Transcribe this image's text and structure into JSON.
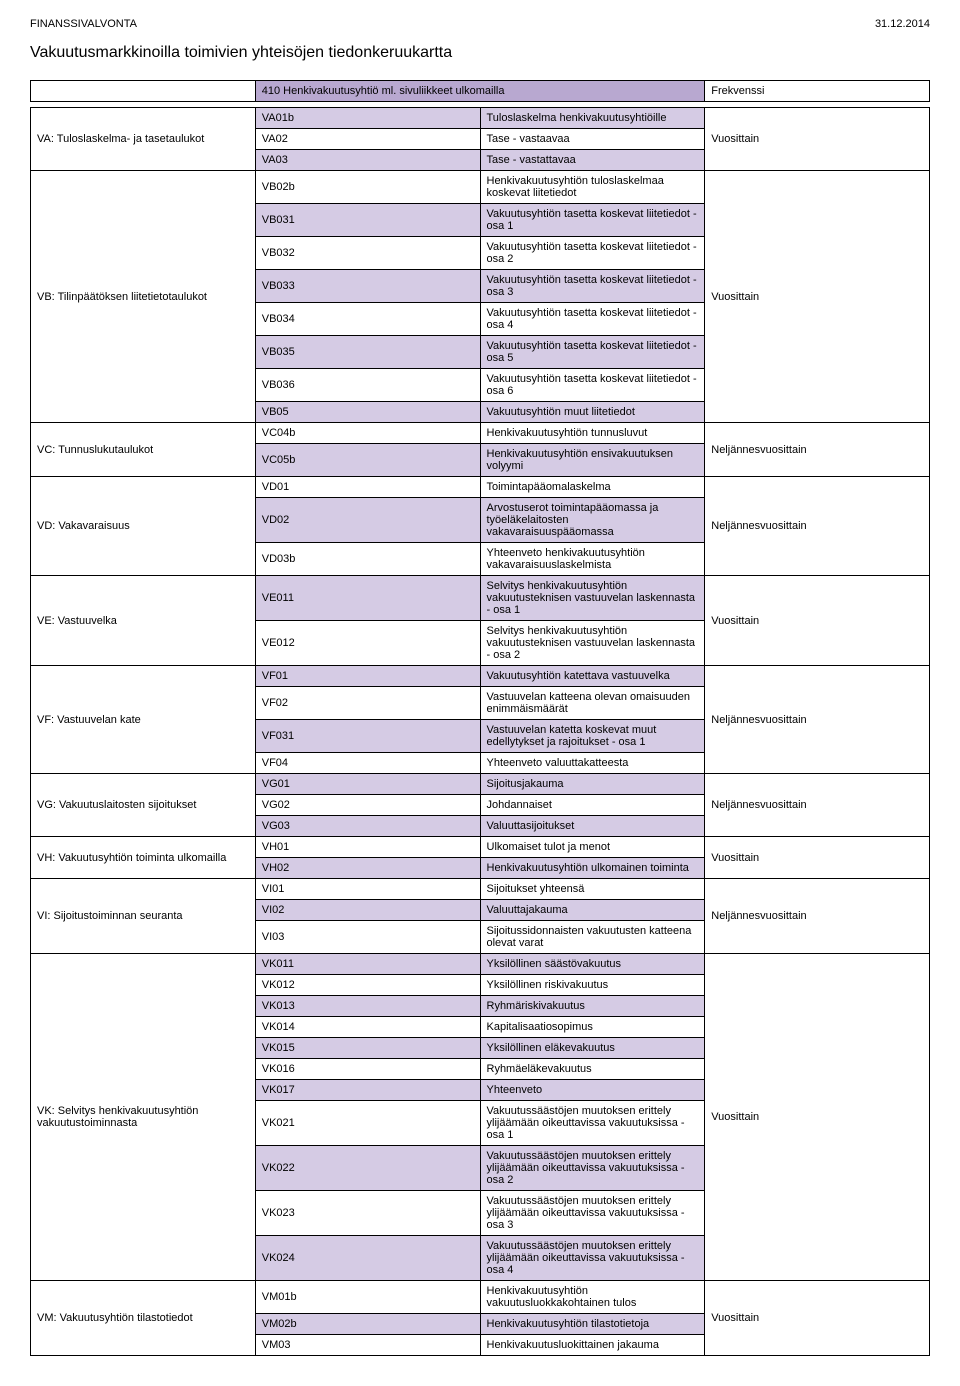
{
  "header": {
    "org": "FINANSSIVALVONTA",
    "date": "31.12.2014"
  },
  "page_title": "Vakuutusmarkkinoilla toimivien yhteisöjen tiedonkeruukartta",
  "table_header": {
    "title": "410 Henkivakuutusyhtiö ml. sivuliikkeet ulkomailla",
    "freq_label": "Frekvenssi"
  },
  "colors": {
    "header_bg": "#b8a8d0",
    "row_bg": "#d5cbe4",
    "border": "#000000",
    "text": "#000000"
  },
  "groups": [
    {
      "id": "VA",
      "label": "VA: Tuloslaskelma- ja tasetaulukot",
      "freq": "Vuosittain",
      "rows": [
        {
          "code": "VA01b",
          "desc": "Tuloslaskelma henkivakuutusyhtiöille"
        },
        {
          "code": "VA02",
          "desc": "Tase - vastaavaa"
        },
        {
          "code": "VA03",
          "desc": "Tase - vastattavaa"
        }
      ]
    },
    {
      "id": "VB",
      "label": "VB: Tilinpäätöksen liitetietotaulukot",
      "freq": "Vuosittain",
      "rows": [
        {
          "code": "VB02b",
          "desc": "Henkivakuutusyhtiön tuloslaskelmaa koskevat liitetiedot"
        },
        {
          "code": "VB031",
          "desc": "Vakuutusyhtiön tasetta koskevat liitetiedot - osa 1"
        },
        {
          "code": "VB032",
          "desc": "Vakuutusyhtiön tasetta koskevat liitetiedot - osa 2"
        },
        {
          "code": "VB033",
          "desc": "Vakuutusyhtiön tasetta koskevat liitetiedot - osa 3"
        },
        {
          "code": "VB034",
          "desc": "Vakuutusyhtiön tasetta koskevat liitetiedot - osa 4"
        },
        {
          "code": "VB035",
          "desc": "Vakuutusyhtiön tasetta koskevat liitetiedot - osa 5"
        },
        {
          "code": "VB036",
          "desc": "Vakuutusyhtiön tasetta koskevat liitetiedot - osa 6"
        },
        {
          "code": "VB05",
          "desc": "Vakuutusyhtiön muut liitetiedot"
        }
      ]
    },
    {
      "id": "VC",
      "label": "VC: Tunnuslukutaulukot",
      "freq": "Neljännesvuosittain",
      "rows": [
        {
          "code": "VC04b",
          "desc": "Henkivakuutusyhtiön tunnusluvut"
        },
        {
          "code": "VC05b",
          "desc": "Henkivakuutusyhtiön ensivakuutuksen volyymi"
        }
      ]
    },
    {
      "id": "VD",
      "label": "VD: Vakavaraisuus",
      "freq": "Neljännesvuosittain",
      "rows": [
        {
          "code": "VD01",
          "desc": "Toimintapääomalaskelma"
        },
        {
          "code": "VD02",
          "desc": "Arvostuserot toimintapääomassa ja työeläkelaitosten vakavaraisuuspääomassa"
        },
        {
          "code": "VD03b",
          "desc": "Yhteenveto henkivakuutusyhtiön vakavaraisuuslaskelmista"
        }
      ]
    },
    {
      "id": "VE",
      "label": "VE: Vastuuvelka",
      "freq": "Vuosittain",
      "rows": [
        {
          "code": "VE011",
          "desc": "Selvitys henkivakuutusyhtiön vakuutusteknisen vastuuvelan laskennasta - osa 1"
        },
        {
          "code": "VE012",
          "desc": "Selvitys henkivakuutusyhtiön vakuutusteknisen vastuuvelan laskennasta - osa 2"
        }
      ]
    },
    {
      "id": "VF",
      "label": "VF: Vastuuvelan kate",
      "freq": "Neljännesvuosittain",
      "rows": [
        {
          "code": "VF01",
          "desc": "Vakuutusyhtiön katettava vastuuvelka"
        },
        {
          "code": "VF02",
          "desc": "Vastuuvelan katteena olevan omaisuuden enimmäismäärät"
        },
        {
          "code": "VF031",
          "desc": "Vastuuvelan katetta koskevat muut edellytykset ja rajoitukset - osa 1"
        },
        {
          "code": "VF04",
          "desc": "Yhteenveto valuuttakatteesta"
        }
      ]
    },
    {
      "id": "VG",
      "label": "VG: Vakuutuslaitosten sijoitukset",
      "freq": "Neljännesvuosittain",
      "rows": [
        {
          "code": "VG01",
          "desc": "Sijoitusjakauma"
        },
        {
          "code": "VG02",
          "desc": "Johdannaiset"
        },
        {
          "code": "VG03",
          "desc": "Valuuttasijoitukset"
        }
      ]
    },
    {
      "id": "VH",
      "label": "VH: Vakuutusyhtiön toiminta ulkomailla",
      "freq": "Vuosittain",
      "rows": [
        {
          "code": "VH01",
          "desc": "Ulkomaiset tulot ja menot"
        },
        {
          "code": "VH02",
          "desc": "Henkivakuutusyhtiön ulkomainen toiminta"
        }
      ]
    },
    {
      "id": "VI",
      "label": "VI: Sijoitustoiminnan seuranta",
      "freq": "Neljännesvuosittain",
      "rows": [
        {
          "code": "VI01",
          "desc": "Sijoitukset yhteensä"
        },
        {
          "code": "VI02",
          "desc": "Valuuttajakauma"
        },
        {
          "code": "VI03",
          "desc": "Sijoitussidonnaisten vakuutusten katteena olevat varat"
        }
      ]
    },
    {
      "id": "VK",
      "label": "VK: Selvitys henkivakuutusyhtiön vakuutustoiminnasta",
      "freq": "Vuosittain",
      "rows": [
        {
          "code": "VK011",
          "desc": "Yksilöllinen säästövakuutus"
        },
        {
          "code": "VK012",
          "desc": "Yksilöllinen riskivakuutus"
        },
        {
          "code": "VK013",
          "desc": "Ryhmäriskivakuutus"
        },
        {
          "code": "VK014",
          "desc": "Kapitalisaatiosopimus"
        },
        {
          "code": "VK015",
          "desc": "Yksilöllinen eläkevakuutus"
        },
        {
          "code": "VK016",
          "desc": "Ryhmäeläkevakuutus"
        },
        {
          "code": "VK017",
          "desc": "Yhteenveto"
        },
        {
          "code": "VK021",
          "desc": "Vakuutussäästöjen muutoksen erittely ylijäämään oikeuttavissa vakuutuksissa - osa 1"
        },
        {
          "code": "VK022",
          "desc": "Vakuutussäästöjen muutoksen erittely ylijäämään oikeuttavissa vakuutuksissa - osa 2"
        },
        {
          "code": "VK023",
          "desc": "Vakuutussäästöjen muutoksen erittely ylijäämään oikeuttavissa vakuutuksissa - osa 3"
        },
        {
          "code": "VK024",
          "desc": "Vakuutussäästöjen muutoksen erittely ylijäämään oikeuttavissa vakuutuksissa - osa 4"
        }
      ]
    },
    {
      "id": "VM",
      "label": "VM: Vakuutusyhtiön tilastotiedot",
      "freq": "Vuosittain",
      "rows": [
        {
          "code": "VM01b",
          "desc": "Henkivakuutusyhtiön vakuutusluokkakohtainen tulos"
        },
        {
          "code": "VM02b",
          "desc": "Henkivakuutusyhtiön tilastotietoja"
        },
        {
          "code": "VM03",
          "desc": "Henkivakuutusluokittainen jakauma"
        }
      ]
    }
  ]
}
